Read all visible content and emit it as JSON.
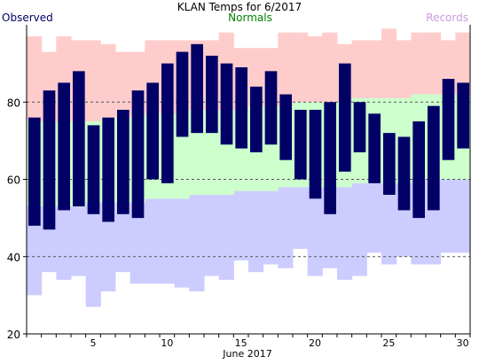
{
  "chart_data": {
    "type": "bar",
    "title": "KLAN Temps for 6/2017",
    "xlabel": "June 2017",
    "ylabel": "",
    "legend": {
      "observed": "Observed",
      "normals": "Normals",
      "records": "Records"
    },
    "colors": {
      "observed": "#000066",
      "normals": "#ccffcc",
      "records_high": "#ffcccc",
      "records_low": "#ccccff",
      "legend_observed": "#000066",
      "legend_normals": "#008000",
      "legend_records": "#cc99dd"
    },
    "ylim": [
      20,
      100
    ],
    "yticks": [
      20,
      40,
      60,
      80
    ],
    "dashed_gridlines": [
      40,
      60,
      80
    ],
    "xticks": [
      5,
      10,
      15,
      20,
      25,
      30
    ],
    "days": [
      1,
      2,
      3,
      4,
      5,
      6,
      7,
      8,
      9,
      10,
      11,
      12,
      13,
      14,
      15,
      16,
      17,
      18,
      19,
      20,
      21,
      22,
      23,
      24,
      25,
      26,
      27,
      28,
      29,
      30
    ],
    "observed_high": [
      76,
      83,
      85,
      88,
      74,
      76,
      78,
      83,
      85,
      90,
      93,
      95,
      92,
      90,
      89,
      84,
      88,
      82,
      78,
      78,
      80,
      90,
      80,
      77,
      72,
      71,
      75,
      79,
      86,
      85
    ],
    "observed_low": [
      48,
      47,
      52,
      53,
      51,
      49,
      51,
      50,
      60,
      59,
      71,
      72,
      72,
      69,
      68,
      67,
      69,
      65,
      60,
      55,
      51,
      62,
      67,
      59,
      56,
      52,
      50,
      52,
      65,
      68
    ],
    "normal_high": [
      75,
      75,
      75,
      75,
      75,
      76,
      76,
      76,
      77,
      77,
      77,
      78,
      78,
      78,
      78,
      79,
      79,
      79,
      80,
      80,
      80,
      80,
      81,
      81,
      81,
      81,
      82,
      82,
      82,
      82
    ],
    "normal_low": [
      53,
      53,
      53,
      53,
      54,
      54,
      54,
      54,
      55,
      55,
      55,
      56,
      56,
      56,
      57,
      57,
      57,
      58,
      58,
      58,
      58,
      58,
      59,
      59,
      59,
      59,
      60,
      60,
      60,
      60
    ],
    "record_high": [
      97,
      93,
      97,
      96,
      96,
      95,
      93,
      93,
      96,
      96,
      96,
      96,
      96,
      98,
      94,
      94,
      94,
      98,
      98,
      97,
      98,
      95,
      96,
      96,
      99,
      96,
      98,
      98,
      96,
      98
    ],
    "record_low": [
      30,
      36,
      34,
      35,
      27,
      31,
      36,
      33,
      33,
      33,
      32,
      31,
      35,
      34,
      39,
      36,
      38,
      37,
      42,
      35,
      37,
      34,
      35,
      41,
      38,
      40,
      38,
      38,
      41,
      41
    ]
  }
}
